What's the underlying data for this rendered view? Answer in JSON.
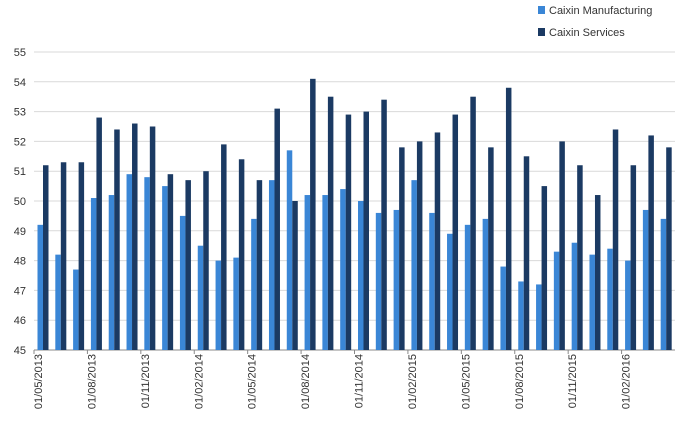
{
  "chart_data": {
    "type": "bar",
    "title": "",
    "xlabel": "",
    "ylabel": "",
    "ylim": [
      45,
      55
    ],
    "yticks": [
      45,
      46,
      47,
      48,
      49,
      50,
      51,
      52,
      53,
      54,
      55
    ],
    "grid": true,
    "legend_position": "top-right",
    "categories": [
      "01/05/2013",
      "01/06/2013",
      "01/07/2013",
      "01/08/2013",
      "01/09/2013",
      "01/10/2013",
      "01/11/2013",
      "01/12/2013",
      "01/01/2014",
      "01/02/2014",
      "01/03/2014",
      "01/04/2014",
      "01/05/2014",
      "01/06/2014",
      "01/07/2014",
      "01/08/2014",
      "01/09/2014",
      "01/10/2014",
      "01/11/2014",
      "01/12/2014",
      "01/01/2015",
      "01/02/2015",
      "01/03/2015",
      "01/04/2015",
      "01/05/2015",
      "01/06/2015",
      "01/07/2015",
      "01/08/2015",
      "01/09/2015",
      "01/10/2015",
      "01/11/2015",
      "01/12/2015",
      "01/01/2016",
      "01/02/2016",
      "01/03/2016",
      "01/04/2016"
    ],
    "tick_labels": [
      {
        "index": 0,
        "label": "01/05/2013"
      },
      {
        "index": 3,
        "label": "01/08/2013"
      },
      {
        "index": 6,
        "label": "01/11/2013"
      },
      {
        "index": 9,
        "label": "01/02/2014"
      },
      {
        "index": 12,
        "label": "01/05/2014"
      },
      {
        "index": 15,
        "label": "01/08/2014"
      },
      {
        "index": 18,
        "label": "01/11/2014"
      },
      {
        "index": 21,
        "label": "01/02/2015"
      },
      {
        "index": 24,
        "label": "01/05/2015"
      },
      {
        "index": 27,
        "label": "01/08/2015"
      },
      {
        "index": 30,
        "label": "01/11/2015"
      },
      {
        "index": 33,
        "label": "01/02/2016"
      }
    ],
    "series": [
      {
        "name": "Caixin Manufacturing",
        "color": "#3a86d6",
        "values": [
          49.2,
          48.2,
          47.7,
          50.1,
          50.2,
          50.9,
          50.8,
          50.5,
          49.5,
          48.5,
          48.0,
          48.1,
          49.4,
          50.7,
          51.7,
          50.2,
          50.2,
          50.4,
          50.0,
          49.6,
          49.7,
          50.7,
          49.6,
          48.9,
          49.2,
          49.4,
          47.8,
          47.3,
          47.2,
          48.3,
          48.6,
          48.2,
          48.4,
          48.0,
          49.7,
          49.4
        ]
      },
      {
        "name": "Caixin Services",
        "color": "#1b3a63",
        "values": [
          51.2,
          51.3,
          51.3,
          52.8,
          52.4,
          52.6,
          52.5,
          50.9,
          50.7,
          51.0,
          51.9,
          51.4,
          50.7,
          53.1,
          50.0,
          54.1,
          53.5,
          52.9,
          53.0,
          53.4,
          51.8,
          52.0,
          52.3,
          52.9,
          53.5,
          51.8,
          53.8,
          51.5,
          50.5,
          52.0,
          51.2,
          50.2,
          52.4,
          51.2,
          52.2,
          51.8
        ]
      }
    ]
  }
}
